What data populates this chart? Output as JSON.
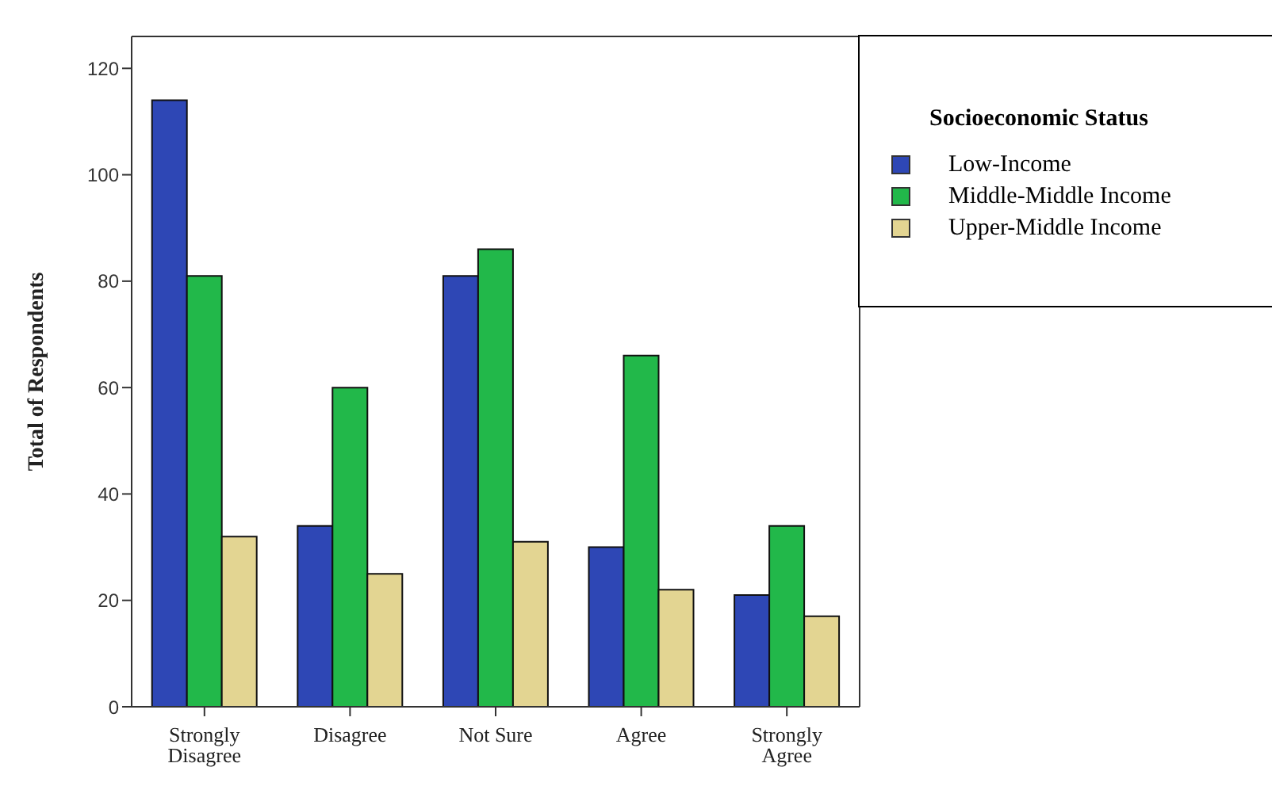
{
  "chart_data": {
    "type": "bar",
    "ylabel": "Total of Respondents",
    "legend_title": "Socioeconomic Status",
    "categories": [
      "Strongly Disagree",
      "Disagree",
      "Not Sure",
      "Agree",
      "Strongly Agree"
    ],
    "series": [
      {
        "name": "Low-Income",
        "color": "#2e47b5",
        "values": [
          114,
          34,
          81,
          30,
          21
        ]
      },
      {
        "name": "Middle-Middle Income",
        "color": "#22b84a",
        "values": [
          81,
          60,
          86,
          66,
          34
        ]
      },
      {
        "name": "Upper-Middle Income",
        "color": "#e3d592",
        "values": [
          32,
          25,
          31,
          22,
          17
        ]
      }
    ],
    "ylim": [
      0,
      126
    ],
    "yticks": [
      0,
      20,
      40,
      60,
      80,
      100,
      120
    ],
    "grid": false,
    "legend": "top right"
  }
}
